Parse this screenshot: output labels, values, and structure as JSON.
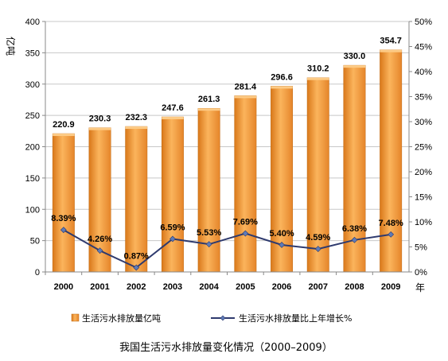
{
  "chart_data": {
    "type": "bar",
    "title": "我国生活污水排放量变化情况（2000–2009）",
    "categories": [
      "2000",
      "2001",
      "2002",
      "2003",
      "2004",
      "2005",
      "2006",
      "2007",
      "2008",
      "2009"
    ],
    "x_unit": "年",
    "series": [
      {
        "name": "生活污水排放量亿吨",
        "type": "bar",
        "axis": "left",
        "color": "#F29A2E",
        "values": [
          220.9,
          230.3,
          232.3,
          247.6,
          261.3,
          281.4,
          296.6,
          310.2,
          330.0,
          354.7
        ],
        "labels": [
          "220.9",
          "230.3",
          "232.3",
          "247.6",
          "261.3",
          "281.4",
          "296.6",
          "310.2",
          "330.0",
          "354.7"
        ]
      },
      {
        "name": "生活污水排放量比上年增长%",
        "type": "line",
        "axis": "right",
        "color": "#2E3A6E",
        "values": [
          8.39,
          4.26,
          0.87,
          6.59,
          5.53,
          7.69,
          5.4,
          4.59,
          6.38,
          7.48
        ],
        "labels": [
          "8.39%",
          "4.26%",
          "0.87%",
          "6.59%",
          "5.53%",
          "7.69%",
          "5.40%",
          "4.59%",
          "6.38%",
          "7.48%"
        ]
      }
    ],
    "y_left": {
      "label": "亿吨",
      "ylim": [
        0,
        400
      ],
      "ticks": [
        "0",
        "50",
        "100",
        "150",
        "200",
        "250",
        "300",
        "350",
        "400"
      ]
    },
    "y_right": {
      "ylim": [
        0,
        50
      ],
      "ticks": [
        "0%",
        "5%",
        "10%",
        "15%",
        "20%",
        "25%",
        "30%",
        "35%",
        "40%",
        "45%",
        "50%"
      ]
    },
    "grid": true,
    "legend_position": "bottom"
  }
}
